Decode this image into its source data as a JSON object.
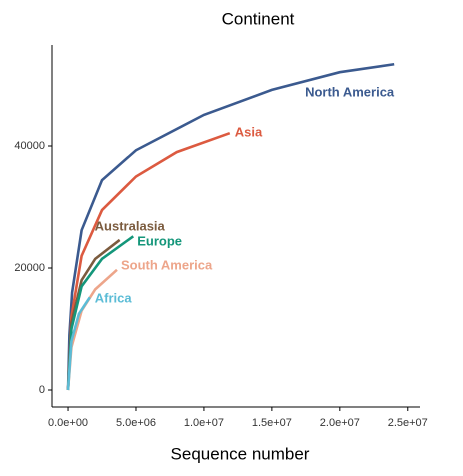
{
  "chart_data": {
    "type": "line",
    "title": "Continent",
    "x_label": "Sequence number",
    "xlim": [
      -1180000,
      25900000
    ],
    "ylim": [
      -2787,
      56557
    ],
    "xticks": [
      {
        "value": 0,
        "label": "0.0e+00"
      },
      {
        "value": 5000000,
        "label": "5.0e+06"
      },
      {
        "value": 10000000,
        "label": "1.0e+07"
      },
      {
        "value": 15000000,
        "label": "1.5e+07"
      },
      {
        "value": 20000000,
        "label": "2.0e+07"
      },
      {
        "value": 25000000,
        "label": "2.5e+07"
      }
    ],
    "yticks": [
      0,
      20000,
      40000
    ],
    "grid": false,
    "series": [
      {
        "name": "North America",
        "color": "#3b5a8f",
        "x": [
          0,
          100000,
          300000,
          1000000,
          2500000,
          5000000,
          10000000,
          15000000,
          20000000,
          24000000
        ],
        "values": [
          0,
          9000,
          16000,
          26200,
          34400,
          39300,
          45100,
          49200,
          52100,
          53400
        ]
      },
      {
        "name": "Asia",
        "color": "#dc5a40",
        "x": [
          0,
          250000,
          1000000,
          2500000,
          5000000,
          8000000,
          11900000
        ],
        "values": [
          0,
          12000,
          22000,
          29500,
          35000,
          39000,
          42100
        ]
      },
      {
        "name": "Australasia",
        "color": "#7b5b3e",
        "x": [
          0,
          250000,
          1000000,
          2000000,
          3800000
        ],
        "values": [
          0,
          11000,
          18000,
          21500,
          24600
        ]
      },
      {
        "name": "Europe",
        "color": "#14967a",
        "x": [
          0,
          250000,
          1000000,
          2500000,
          4800000
        ],
        "values": [
          0,
          10000,
          17000,
          21500,
          25200
        ]
      },
      {
        "name": "South America",
        "color": "#eda58a",
        "x": [
          0,
          250000,
          1000000,
          2000000,
          3600000
        ],
        "values": [
          0,
          7000,
          13000,
          16500,
          19700
        ]
      },
      {
        "name": "Africa",
        "color": "#5bbcd6",
        "x": [
          0,
          250000,
          800000,
          1600000
        ],
        "values": [
          0,
          8000,
          12500,
          15200
        ]
      }
    ]
  }
}
